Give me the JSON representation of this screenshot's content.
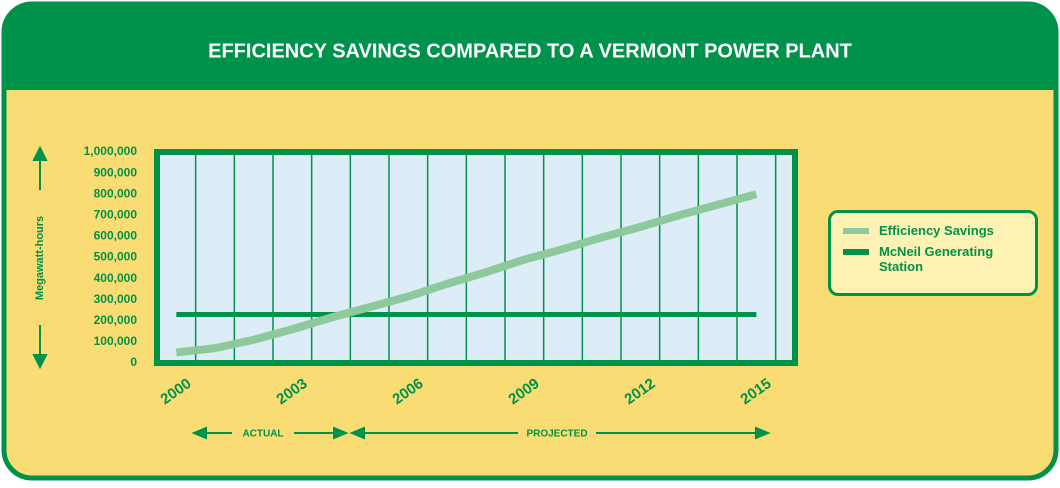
{
  "chart_data": {
    "type": "line",
    "title": "EFFICIENCY SAVINGS COMPARED TO A VERMONT POWER PLANT",
    "y_label": "Megawatt-hours",
    "x": [
      2000,
      2001,
      2002,
      2003,
      2004,
      2005,
      2006,
      2007,
      2008,
      2009,
      2010,
      2011,
      2012,
      2013,
      2014,
      2015
    ],
    "series": [
      {
        "name": "Efficiency Savings",
        "color": "#8dc99b",
        "values": [
          50000,
          70000,
          110000,
          160000,
          215000,
          265000,
          315000,
          375000,
          430000,
          490000,
          540000,
          595000,
          645000,
          700000,
          750000,
          800000
        ]
      },
      {
        "name": "McNeil Generating Station",
        "color": "#00924a",
        "values": [
          230000,
          230000,
          230000,
          230000,
          230000,
          230000,
          230000,
          230000,
          230000,
          230000,
          230000,
          230000,
          230000,
          230000,
          230000,
          230000
        ]
      }
    ],
    "xlim": [
      1999.5,
      2016
    ],
    "xticks": [
      2000,
      2003,
      2006,
      2009,
      2012,
      2015
    ],
    "ylim": [
      0,
      1000000
    ],
    "yticks": [
      0,
      {
        "value": 100000,
        "label": "100,000"
      },
      {
        "value": 200000,
        "label": "200,000"
      },
      {
        "value": 300000,
        "label": "300,000"
      },
      {
        "value": 400000,
        "label": "400,000"
      },
      {
        "value": 500000,
        "label": "500,000"
      },
      {
        "value": 600000,
        "label": "600,000"
      },
      {
        "value": 700000,
        "label": "700,000"
      },
      {
        "value": 800000,
        "label": "800,000"
      },
      {
        "value": 900000,
        "label": "900,000"
      },
      {
        "value": 1000000,
        "label": "1,000,000"
      }
    ],
    "annotations": [
      "ACTUAL",
      "PROJECTED"
    ],
    "grid": true
  }
}
